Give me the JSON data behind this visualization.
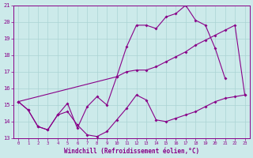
{
  "background_color": "#cceaea",
  "line_color": "#880088",
  "grid_color": "#aad4d4",
  "xlabel": "Windchill (Refroidissement éolien,°C)",
  "ylim": [
    13,
    21
  ],
  "xlim": [
    -0.5,
    23.5
  ],
  "yticks": [
    13,
    14,
    15,
    16,
    17,
    18,
    19,
    20,
    21
  ],
  "xticks": [
    0,
    1,
    2,
    3,
    4,
    5,
    6,
    7,
    8,
    9,
    10,
    11,
    12,
    13,
    14,
    15,
    16,
    17,
    18,
    19,
    20,
    21,
    22,
    23
  ],
  "line1_x": [
    0,
    1,
    2,
    3,
    4,
    5,
    6,
    7,
    8,
    9,
    10,
    11,
    12,
    13,
    14,
    15,
    16,
    17,
    18,
    19,
    20,
    21,
    22,
    23
  ],
  "line1_y": [
    15.2,
    14.7,
    13.7,
    13.5,
    14.4,
    14.6,
    13.8,
    13.2,
    13.1,
    13.4,
    14.1,
    14.8,
    15.6,
    15.3,
    14.1,
    14.0,
    14.2,
    14.4,
    14.6,
    14.9,
    15.2,
    15.4,
    15.5,
    15.6
  ],
  "line2_x": [
    0,
    1,
    2,
    3,
    4,
    5,
    6,
    7,
    8,
    9,
    10,
    11,
    12,
    13,
    14,
    15,
    16,
    17,
    18,
    19,
    20,
    21
  ],
  "line2_y": [
    15.2,
    14.7,
    13.7,
    13.5,
    14.4,
    15.1,
    13.6,
    14.9,
    15.5,
    15.0,
    16.7,
    18.5,
    19.8,
    19.8,
    19.6,
    20.3,
    20.5,
    21.0,
    20.1,
    19.8,
    18.4,
    16.6
  ],
  "line3_x": [
    0,
    10,
    11,
    12,
    13,
    14,
    15,
    16,
    17,
    18,
    19,
    20,
    21,
    22,
    23
  ],
  "line3_y": [
    15.2,
    16.7,
    17.0,
    17.1,
    17.1,
    17.3,
    17.6,
    17.9,
    18.2,
    18.6,
    18.9,
    19.2,
    19.5,
    19.8,
    15.6
  ]
}
